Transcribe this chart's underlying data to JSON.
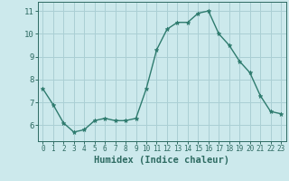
{
  "x": [
    0,
    1,
    2,
    3,
    4,
    5,
    6,
    7,
    8,
    9,
    10,
    11,
    12,
    13,
    14,
    15,
    16,
    17,
    18,
    19,
    20,
    21,
    22,
    23
  ],
  "y": [
    7.6,
    6.9,
    6.1,
    5.7,
    5.8,
    6.2,
    6.3,
    6.2,
    6.2,
    6.3,
    7.6,
    9.3,
    10.2,
    10.5,
    10.5,
    10.9,
    11.0,
    10.0,
    9.5,
    8.8,
    8.3,
    7.3,
    6.6,
    6.5
  ],
  "xlabel": "Humidex (Indice chaleur)",
  "xlim": [
    -0.5,
    23.5
  ],
  "ylim": [
    5.3,
    11.4
  ],
  "yticks": [
    6,
    7,
    8,
    9,
    10,
    11
  ],
  "xticks": [
    0,
    1,
    2,
    3,
    4,
    5,
    6,
    7,
    8,
    9,
    10,
    11,
    12,
    13,
    14,
    15,
    16,
    17,
    18,
    19,
    20,
    21,
    22,
    23
  ],
  "line_color": "#2e7b6e",
  "marker": "*",
  "bg_color": "#cce9ec",
  "grid_color": "#aacfd4",
  "tick_color": "#2e6b62",
  "label_color": "#2e6b62",
  "font_family": "monospace",
  "xlabel_fontsize": 7.5,
  "tick_fontsize_x": 5.5,
  "tick_fontsize_y": 6.5
}
